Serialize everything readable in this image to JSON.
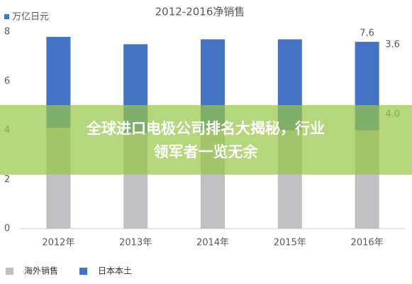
{
  "chart_data": {
    "type": "stacked_bar",
    "title": "2012-2016净销售",
    "y_unit_label": "万亿日元",
    "categories": [
      "2012年",
      "2013年",
      "2014年",
      "2015年",
      "2016年"
    ],
    "series": [
      {
        "name": "海外销售",
        "color": "#c0bfc1",
        "values": [
          4.1,
          3.9,
          4.0,
          4.0,
          4.0
        ],
        "value_labels": [
          null,
          null,
          null,
          null,
          "4.0"
        ]
      },
      {
        "name": "日本本土",
        "color": "#4472c4",
        "values": [
          3.7,
          3.6,
          3.7,
          3.7,
          3.6
        ],
        "value_labels": [
          null,
          null,
          null,
          null,
          "3.6"
        ]
      }
    ],
    "annotations": [
      {
        "text": "7.6",
        "value": 7.6,
        "category": 4
      }
    ],
    "ylim": [
      0,
      8
    ],
    "yticks": [
      0,
      2,
      4,
      6,
      8
    ],
    "grid": false
  },
  "overlay": {
    "lines": [
      "全球进口电极公司排名大揭秘，行业",
      "领军者一览无余"
    ]
  }
}
